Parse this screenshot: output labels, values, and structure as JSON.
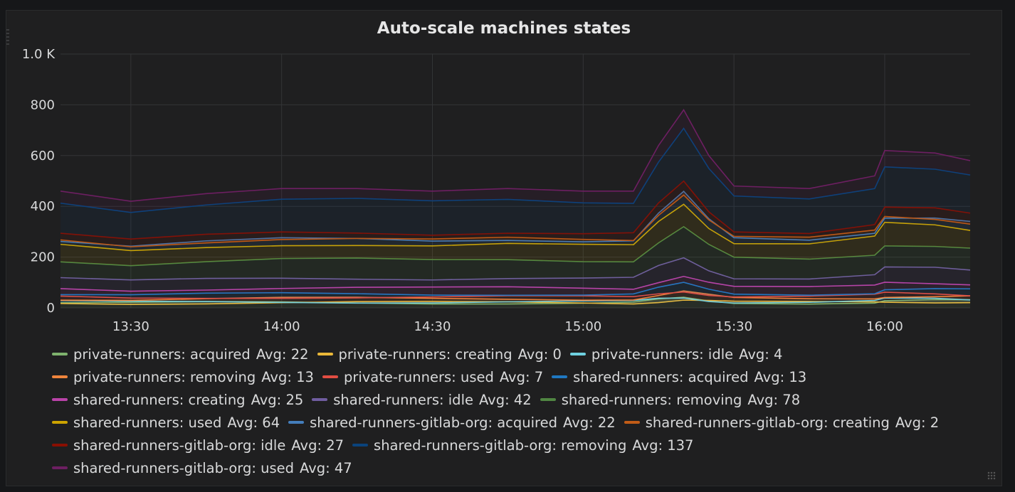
{
  "panel": {
    "title": "Auto-scale machines states"
  },
  "chart_data": {
    "type": "area",
    "title": "Auto-scale machines states",
    "xlabel": "",
    "ylabel": "",
    "x_ticks": [
      "13:30",
      "14:00",
      "14:30",
      "15:00",
      "15:30",
      "16:00"
    ],
    "y_ticks": [
      "0",
      "200",
      "400",
      "600",
      "800",
      "1.0 K"
    ],
    "ylim": [
      0,
      1000
    ],
    "xlim": [
      "13:16",
      "16:17"
    ],
    "grid": true,
    "legend_position": "bottom",
    "x": [
      "13:16",
      "13:30",
      "13:45",
      "14:00",
      "14:15",
      "14:30",
      "14:45",
      "15:00",
      "15:10",
      "15:15",
      "15:20",
      "15:25",
      "15:30",
      "15:45",
      "15:58",
      "16:00",
      "16:10",
      "16:17"
    ],
    "stacked_total": [
      460,
      420,
      450,
      470,
      470,
      460,
      470,
      460,
      460,
      640,
      780,
      600,
      480,
      470,
      520,
      620,
      610,
      580
    ],
    "series": [
      {
        "name": "private-runners: acquired",
        "color": "#7eb26d",
        "avg": "22"
      },
      {
        "name": "private-runners: creating",
        "color": "#eab839",
        "avg": "0"
      },
      {
        "name": "private-runners: idle",
        "color": "#6ed0e0",
        "avg": "4"
      },
      {
        "name": "private-runners: removing",
        "color": "#ef843c",
        "avg": "13"
      },
      {
        "name": "private-runners: used",
        "color": "#e24d42",
        "avg": "7"
      },
      {
        "name": "shared-runners: acquired",
        "color": "#1f78c1",
        "avg": "13"
      },
      {
        "name": "shared-runners: creating",
        "color": "#ba43a9",
        "avg": "25"
      },
      {
        "name": "shared-runners: idle",
        "color": "#705da0",
        "avg": "42"
      },
      {
        "name": "shared-runners: removing",
        "color": "#508642",
        "avg": "78"
      },
      {
        "name": "shared-runners: used",
        "color": "#cca300",
        "avg": "64"
      },
      {
        "name": "shared-runners-gitlab-org: acquired",
        "color": "#447ebc",
        "avg": "22"
      },
      {
        "name": "shared-runners-gitlab-org: creating",
        "color": "#c15c17",
        "avg": "2"
      },
      {
        "name": "shared-runners-gitlab-org: idle",
        "color": "#890f02",
        "avg": "27"
      },
      {
        "name": "shared-runners-gitlab-org: removing",
        "color": "#0a437c",
        "avg": "137"
      },
      {
        "name": "shared-runners-gitlab-org: used",
        "color": "#6d1f62",
        "avg": "47"
      }
    ]
  },
  "legend": {
    "avg_label": "Avg:"
  }
}
